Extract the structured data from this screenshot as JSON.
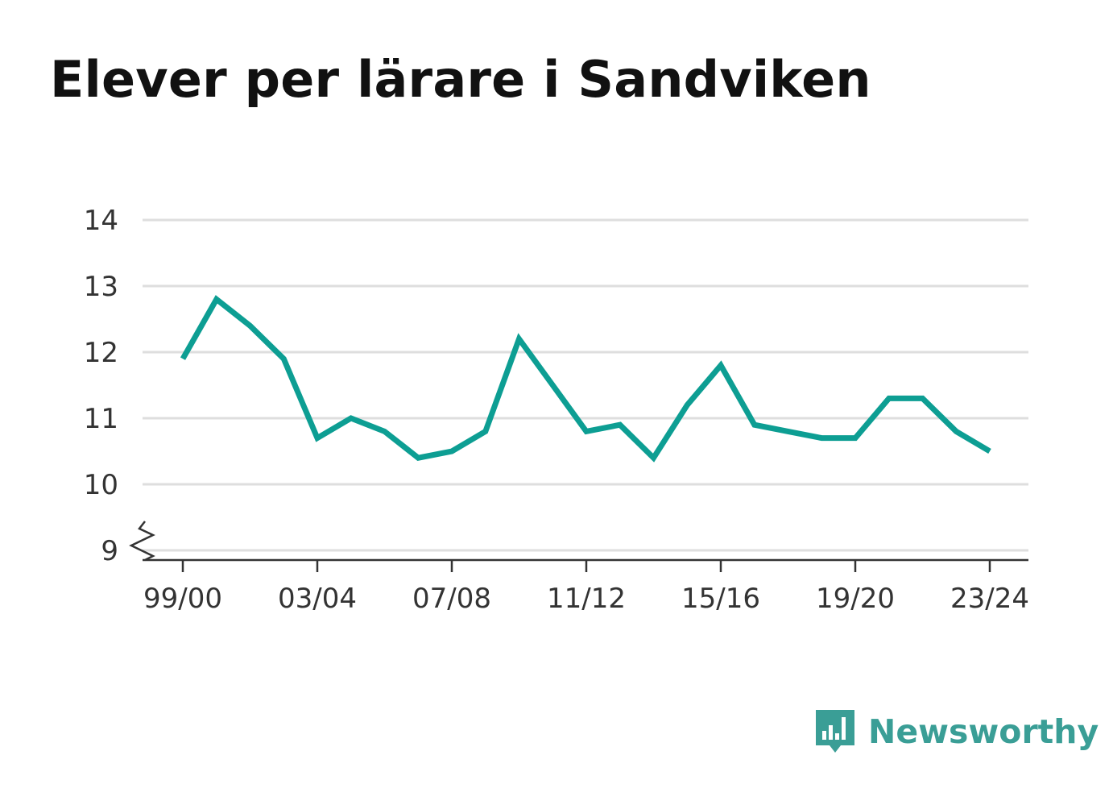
{
  "title": "Elever per lärare i Sandviken",
  "brand": {
    "name": "Newsworthy",
    "logo_icon": "bar-chart-speech-icon",
    "color": "#3a9e96"
  },
  "colors": {
    "line": "#0d9e93",
    "grid": "#dedede",
    "axis": "#333333",
    "text": "#333333"
  },
  "chart_data": {
    "type": "line",
    "title": "Elever per lärare i Sandviken",
    "xlabel": "",
    "ylabel": "",
    "ylim": [
      9,
      14
    ],
    "y_ticks": [
      9,
      10,
      11,
      12,
      13,
      14
    ],
    "y_axis_break": true,
    "grid": true,
    "x": [
      "99/00",
      "00/01",
      "01/02",
      "02/03",
      "03/04",
      "04/05",
      "05/06",
      "06/07",
      "07/08",
      "08/09",
      "09/10",
      "10/11",
      "11/12",
      "12/13",
      "13/14",
      "14/15",
      "15/16",
      "16/17",
      "17/18",
      "18/19",
      "19/20",
      "20/21",
      "21/22",
      "22/23",
      "23/24"
    ],
    "x_tick_labels": [
      "99/00",
      "03/04",
      "07/08",
      "11/12",
      "15/16",
      "19/20",
      "23/24"
    ],
    "series": [
      {
        "values": [
          11.9,
          12.8,
          12.4,
          11.9,
          10.7,
          11.0,
          10.8,
          10.4,
          10.5,
          10.8,
          12.2,
          11.5,
          10.8,
          10.9,
          10.4,
          11.2,
          11.8,
          10.9,
          10.8,
          10.7,
          10.7,
          11.3,
          11.3,
          10.8,
          10.5
        ]
      }
    ]
  }
}
